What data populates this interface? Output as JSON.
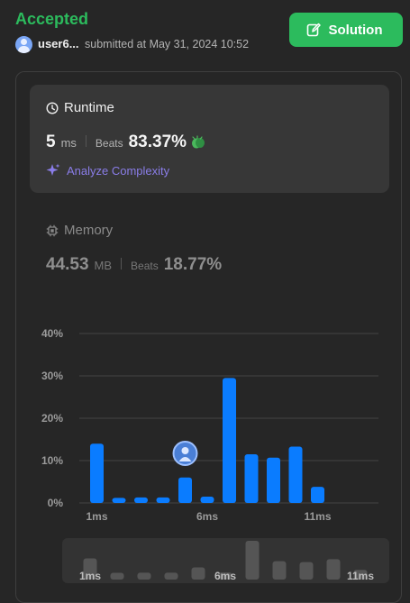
{
  "header": {
    "status": "Accepted",
    "username": "user6...",
    "submitted_text": "submitted at May 31, 2024 10:52",
    "solution_label": "Solution"
  },
  "runtime": {
    "title": "Runtime",
    "value": "5",
    "unit": "ms",
    "beats_label": "Beats",
    "beats_value": "83.37%",
    "analyze_label": "Analyze Complexity"
  },
  "memory": {
    "title": "Memory",
    "value": "44.53",
    "unit": "MB",
    "beats_label": "Beats",
    "beats_value": "18.77%"
  },
  "colors": {
    "accent_green": "#2cbb5d",
    "bar_blue": "#0a7cff",
    "analyze_purple": "#8a7de8",
    "clap_green": "#4ab85c"
  },
  "icons": {
    "solution": "edit-icon",
    "runtime": "clock-icon",
    "memory": "chip-icon",
    "analyze": "sparkle-icon",
    "beats": "clap-icon",
    "user": "avatar-icon"
  },
  "chart_data": {
    "type": "bar",
    "ylim": [
      0,
      40
    ],
    "yticks": [
      "0%",
      "10%",
      "20%",
      "30%",
      "40%"
    ],
    "x_labels": [
      "1ms",
      "6ms",
      "11ms"
    ],
    "x": [
      1,
      2,
      3,
      4,
      5,
      6,
      7,
      8,
      9,
      10,
      11
    ],
    "values": [
      14.0,
      1.2,
      1.3,
      1.3,
      6.0,
      1.5,
      29.5,
      11.5,
      10.7,
      13.3,
      3.8
    ],
    "highlight_index": 4,
    "grid": true,
    "overview_labels": [
      "1ms",
      "6ms",
      "11ms"
    ]
  }
}
